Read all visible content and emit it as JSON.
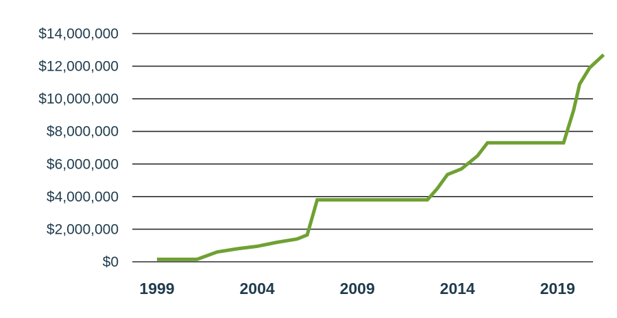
{
  "chart_data": {
    "type": "line",
    "title": "",
    "xlabel": "",
    "ylabel": "",
    "ylim": [
      0,
      14000000
    ],
    "xlim": [
      1999,
      2022
    ],
    "grid": true,
    "y_ticks": [
      0,
      2000000,
      4000000,
      6000000,
      8000000,
      10000000,
      12000000,
      14000000
    ],
    "y_tick_labels": [
      "$0",
      "$2,000,000",
      "$4,000,000",
      "$6,000,000",
      "$8,000,000",
      "$10,000,000",
      "$12,000,000",
      "$14,000,000"
    ],
    "x_ticks": [
      1999,
      2004,
      2009,
      2014,
      2019
    ],
    "x_tick_labels": [
      "1999",
      "2004",
      "2009",
      "2014",
      "2019"
    ],
    "series": [
      {
        "color": "#6fa132",
        "points": [
          {
            "x": 1999.0,
            "y": 150000
          },
          {
            "x": 2000.0,
            "y": 150000
          },
          {
            "x": 2001.0,
            "y": 150000
          },
          {
            "x": 2002.0,
            "y": 600000
          },
          {
            "x": 2003.0,
            "y": 800000
          },
          {
            "x": 2004.0,
            "y": 950000
          },
          {
            "x": 2005.0,
            "y": 1200000
          },
          {
            "x": 2006.0,
            "y": 1400000
          },
          {
            "x": 2006.5,
            "y": 1650000
          },
          {
            "x": 2007.0,
            "y": 3800000
          },
          {
            "x": 2008.0,
            "y": 3800000
          },
          {
            "x": 2009.0,
            "y": 3800000
          },
          {
            "x": 2010.0,
            "y": 3800000
          },
          {
            "x": 2011.0,
            "y": 3800000
          },
          {
            "x": 2012.0,
            "y": 3800000
          },
          {
            "x": 2012.5,
            "y": 3800000
          },
          {
            "x": 2013.0,
            "y": 4500000
          },
          {
            "x": 2013.5,
            "y": 5350000
          },
          {
            "x": 2014.2,
            "y": 5700000
          },
          {
            "x": 2015.0,
            "y": 6500000
          },
          {
            "x": 2015.5,
            "y": 7300000
          },
          {
            "x": 2016.0,
            "y": 7300000
          },
          {
            "x": 2017.0,
            "y": 7300000
          },
          {
            "x": 2018.0,
            "y": 7300000
          },
          {
            "x": 2019.0,
            "y": 7300000
          },
          {
            "x": 2019.3,
            "y": 7300000
          },
          {
            "x": 2019.8,
            "y": 9300000
          },
          {
            "x": 2020.1,
            "y": 10900000
          },
          {
            "x": 2020.6,
            "y": 11900000
          },
          {
            "x": 2021.3,
            "y": 12700000
          }
        ]
      }
    ]
  }
}
